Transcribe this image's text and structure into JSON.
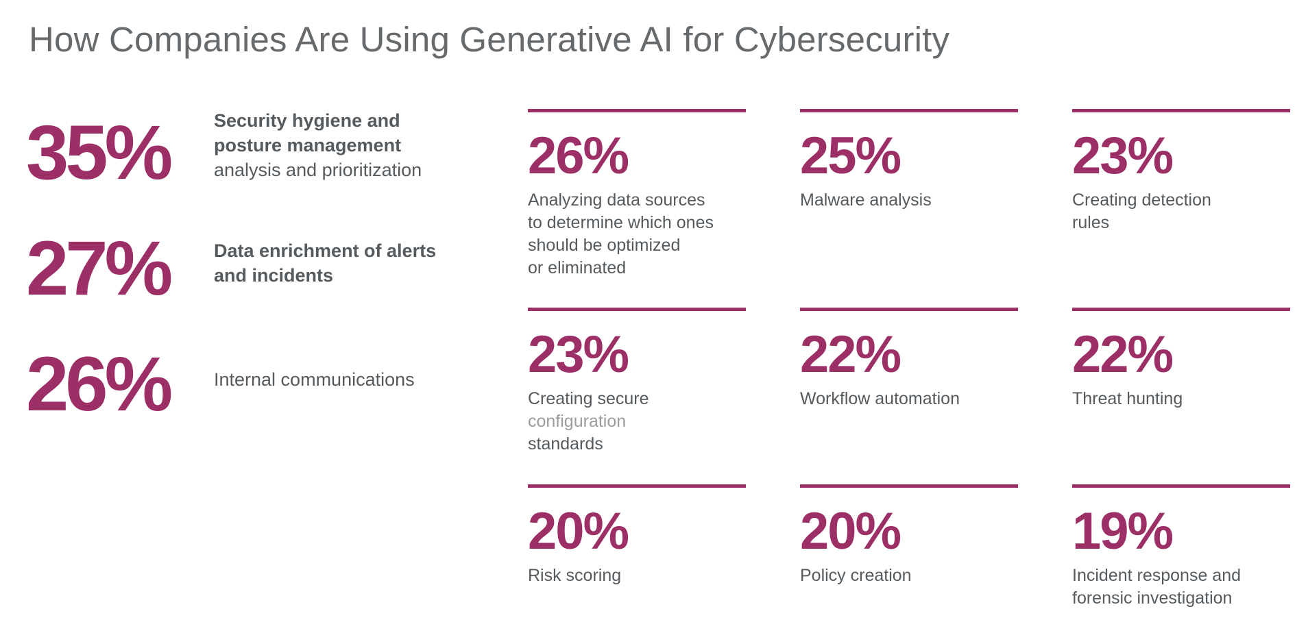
{
  "title": "How Companies Are Using Generative AI for Cybersecurity",
  "colors": {
    "accent": "#9c2f66",
    "title_text": "#666a6d",
    "body_text": "#555a5e"
  },
  "chart_data": {
    "type": "table",
    "title": "How Companies Are Using Generative AI for Cybersecurity",
    "unit": "%",
    "featured": [
      {
        "value": 35,
        "display": "35%",
        "label": "Security hygiene and posture management analysis and prioritization"
      },
      {
        "value": 27,
        "display": "27%",
        "label": "Data enrichment of alerts and incidents"
      },
      {
        "value": 26,
        "display": "26%",
        "label": "Internal communications"
      }
    ],
    "items": [
      {
        "value": 26,
        "display": "26%",
        "label": "Analyzing data sources to determine which ones should be optimized or eliminated"
      },
      {
        "value": 25,
        "display": "25%",
        "label": "Malware analysis"
      },
      {
        "value": 23,
        "display": "23%",
        "label": "Creating detection rules"
      },
      {
        "value": 23,
        "display": "23%",
        "label": "Creating secure configuration standards"
      },
      {
        "value": 22,
        "display": "22%",
        "label": "Workflow automation"
      },
      {
        "value": 22,
        "display": "22%",
        "label": "Threat hunting"
      },
      {
        "value": 20,
        "display": "20%",
        "label": "Risk scoring"
      },
      {
        "value": 20,
        "display": "20%",
        "label": "Policy creation"
      },
      {
        "value": 19,
        "display": "19%",
        "label": "Incident response and forensic investigation"
      }
    ]
  },
  "label_lines": {
    "featured_0": [
      "Security hygiene and",
      "posture management",
      "analysis and prioritization"
    ],
    "featured_1": [
      "Data enrichment of alerts",
      "and incidents"
    ],
    "featured_2": [
      "Internal communications"
    ],
    "item_0": [
      "Analyzing data sources",
      "to determine which ones",
      "should be optimized",
      "or eliminated"
    ],
    "item_1": [
      "Malware analysis"
    ],
    "item_2": [
      "Creating detection",
      "rules"
    ],
    "item_3": [
      "Creating secure",
      "configuration",
      "standards"
    ],
    "item_4": [
      "Workflow automation"
    ],
    "item_5": [
      "Threat hunting"
    ],
    "item_6": [
      "Risk scoring"
    ],
    "item_7": [
      "Policy creation"
    ],
    "item_8": [
      "Incident response and",
      "forensic investigation"
    ]
  }
}
